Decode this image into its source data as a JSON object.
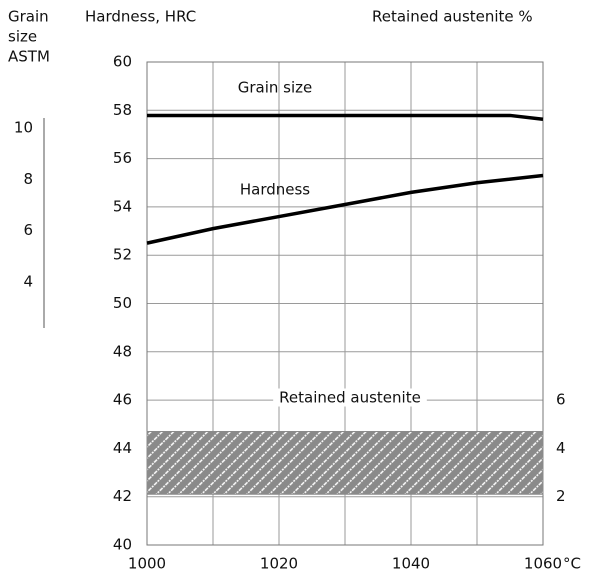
{
  "chart_data": {
    "type": "line",
    "y3_title": [
      "Grain",
      "size",
      "ASTM"
    ],
    "y_title": "Hardness, HRC",
    "y2_title": "Retained austenite %",
    "x_unit": "°C",
    "xlim": [
      1000,
      1060
    ],
    "xticks": [
      1000,
      1020,
      1040,
      1060
    ],
    "xminor": [
      1010,
      1030,
      1050
    ],
    "ylim": [
      40,
      60
    ],
    "yticks": [
      40,
      42,
      44,
      46,
      48,
      50,
      52,
      54,
      56,
      58,
      60
    ],
    "y2lim": [
      0,
      20
    ],
    "y2ticks": [
      2,
      4,
      6
    ],
    "y3lim": [
      2.2,
      10.4
    ],
    "y3ticks": [
      4,
      6,
      8,
      10
    ],
    "grid": true,
    "series": [
      {
        "name": "Grain size",
        "color": "#000000",
        "axis": "y3",
        "x": [
          1000,
          1010,
          1020,
          1030,
          1040,
          1050,
          1055,
          1060
        ],
        "values": [
          10.5,
          10.5,
          10.5,
          10.5,
          10.5,
          10.5,
          10.5,
          10.35
        ]
      },
      {
        "name": "Hardness",
        "color": "#000000",
        "axis": "y",
        "x": [
          1000,
          1005,
          1010,
          1020,
          1030,
          1040,
          1050,
          1060
        ],
        "values": [
          52.5,
          52.8,
          53.1,
          53.6,
          54.1,
          54.6,
          55.0,
          55.3
        ]
      },
      {
        "name": "Retained austenite",
        "color": "#8a8a8a",
        "axis": "y2",
        "type": "band",
        "x": [
          1000,
          1060
        ],
        "values": [
          4.7,
          4.7
        ],
        "lower": [
          2.1,
          2.1
        ]
      }
    ]
  }
}
